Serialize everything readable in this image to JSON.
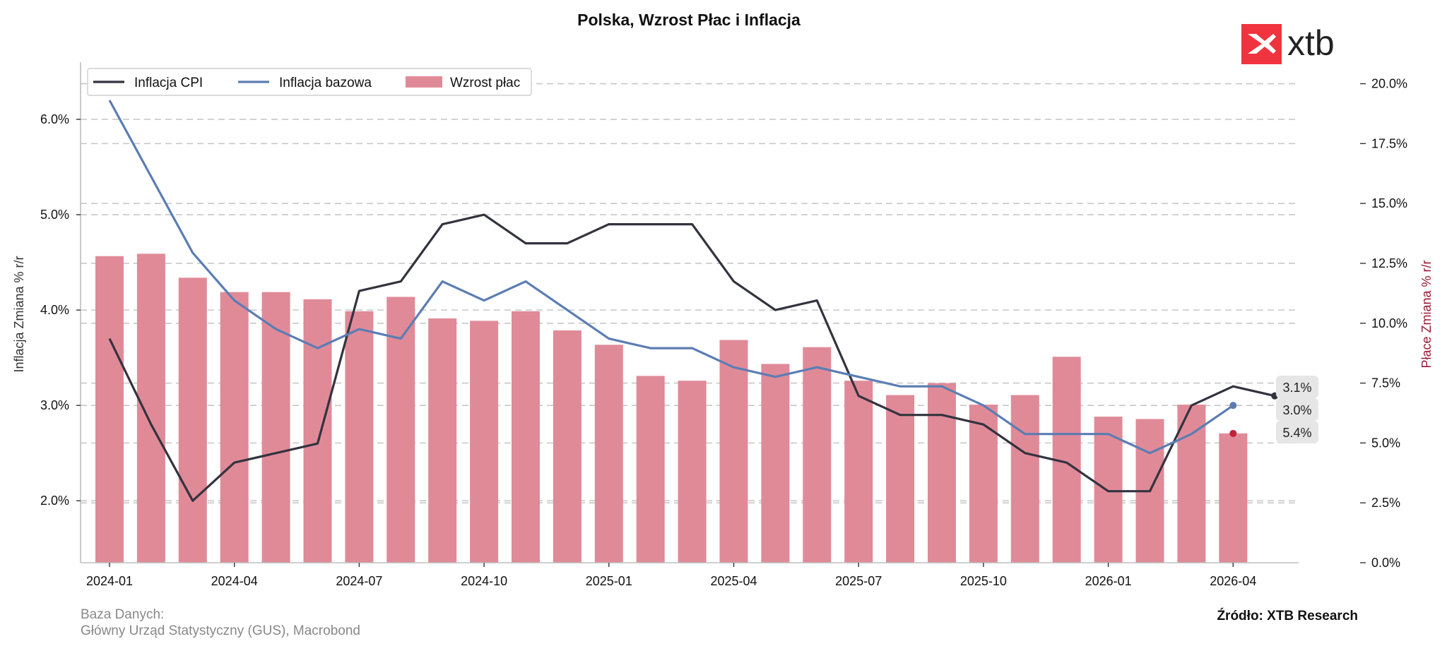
{
  "chart_data": {
    "type": "bar",
    "title": "Polska, Wzrost Płac i Inflacja",
    "ylabel_left": "Inflacja Zmiana % r/r",
    "ylabel_right": "Płace Zmiana % r/r",
    "left_ylim": [
      1.35,
      6.6
    ],
    "right_ylim": [
      0.0,
      20.9
    ],
    "left_ticks": [
      "2.0%",
      "3.0%",
      "4.0%",
      "5.0%",
      "6.0%"
    ],
    "left_tick_values": [
      2.0,
      3.0,
      4.0,
      5.0,
      6.0
    ],
    "right_ticks": [
      "0.0%",
      "2.5%",
      "5.0%",
      "7.5%",
      "10.0%",
      "12.5%",
      "15.0%",
      "17.5%",
      "20.0%"
    ],
    "right_tick_values": [
      0.0,
      2.5,
      5.0,
      7.5,
      10.0,
      12.5,
      15.0,
      17.5,
      20.0
    ],
    "x_tick_labels": [
      "2024-01",
      "2024-04",
      "2024-07",
      "2024-10",
      "2025-01",
      "2025-04",
      "2025-07",
      "2025-10",
      "2026-01",
      "2026-04"
    ],
    "grid": "horizontal dashed",
    "legend_position": "top-left",
    "categories": [
      "2024-01",
      "2024-02",
      "2024-03",
      "2024-04",
      "2024-05",
      "2024-06",
      "2024-07",
      "2024-08",
      "2024-09",
      "2024-10",
      "2024-11",
      "2024-12",
      "2025-01",
      "2025-02",
      "2025-03",
      "2025-04",
      "2025-05",
      "2025-06",
      "2025-07",
      "2025-08",
      "2025-09",
      "2025-10",
      "2025-11",
      "2025-12",
      "2026-01",
      "2026-02",
      "2026-03",
      "2026-04",
      "2026-05"
    ],
    "series": [
      {
        "name": "Inflacja CPI",
        "type": "line",
        "axis": "left",
        "color": "#33333f",
        "values": [
          3.7,
          2.8,
          2.0,
          2.4,
          2.5,
          2.6,
          4.2,
          4.3,
          4.9,
          5.0,
          4.7,
          4.7,
          4.9,
          4.9,
          4.9,
          4.3,
          4.0,
          4.1,
          3.1,
          2.9,
          2.9,
          2.8,
          2.5,
          2.4,
          2.1,
          2.1,
          3.0,
          3.2,
          3.1
        ]
      },
      {
        "name": "Inflacja bazowa",
        "type": "line",
        "axis": "left",
        "color": "#5b7db3",
        "values": [
          6.2,
          5.4,
          4.6,
          4.1,
          3.8,
          3.6,
          3.8,
          3.7,
          4.3,
          4.1,
          4.3,
          4.0,
          3.7,
          3.6,
          3.6,
          3.4,
          3.3,
          3.4,
          3.3,
          3.2,
          3.2,
          3.0,
          2.7,
          2.7,
          2.7,
          2.5,
          2.7,
          3.0,
          null
        ]
      },
      {
        "name": "Wzrost płac",
        "type": "bar",
        "axis": "right",
        "color": "#e08a98",
        "values": [
          12.8,
          12.9,
          11.9,
          11.3,
          11.3,
          11.0,
          10.5,
          11.1,
          10.2,
          10.1,
          10.5,
          9.7,
          9.1,
          7.8,
          7.6,
          9.3,
          8.3,
          9.0,
          7.6,
          7.0,
          7.5,
          6.6,
          7.0,
          8.6,
          6.1,
          6.0,
          6.6,
          5.4,
          null
        ]
      }
    ],
    "last_value_labels": [
      {
        "series": "Inflacja CPI",
        "text": "3.1%",
        "color": "#33333f"
      },
      {
        "series": "Inflacja bazowa",
        "text": "3.0%",
        "color": "#5b7db3"
      },
      {
        "series": "Wzrost płac",
        "text": "5.4%",
        "color": "#c0233a"
      }
    ]
  },
  "footer": {
    "source_heading": "Baza Danych:",
    "source_names": "Główny Urząd Statystyczny (GUS), Macrobond",
    "credit": "Źródło: XTB Research"
  },
  "logo": {
    "text": "xtb",
    "color": "#f0343f"
  }
}
